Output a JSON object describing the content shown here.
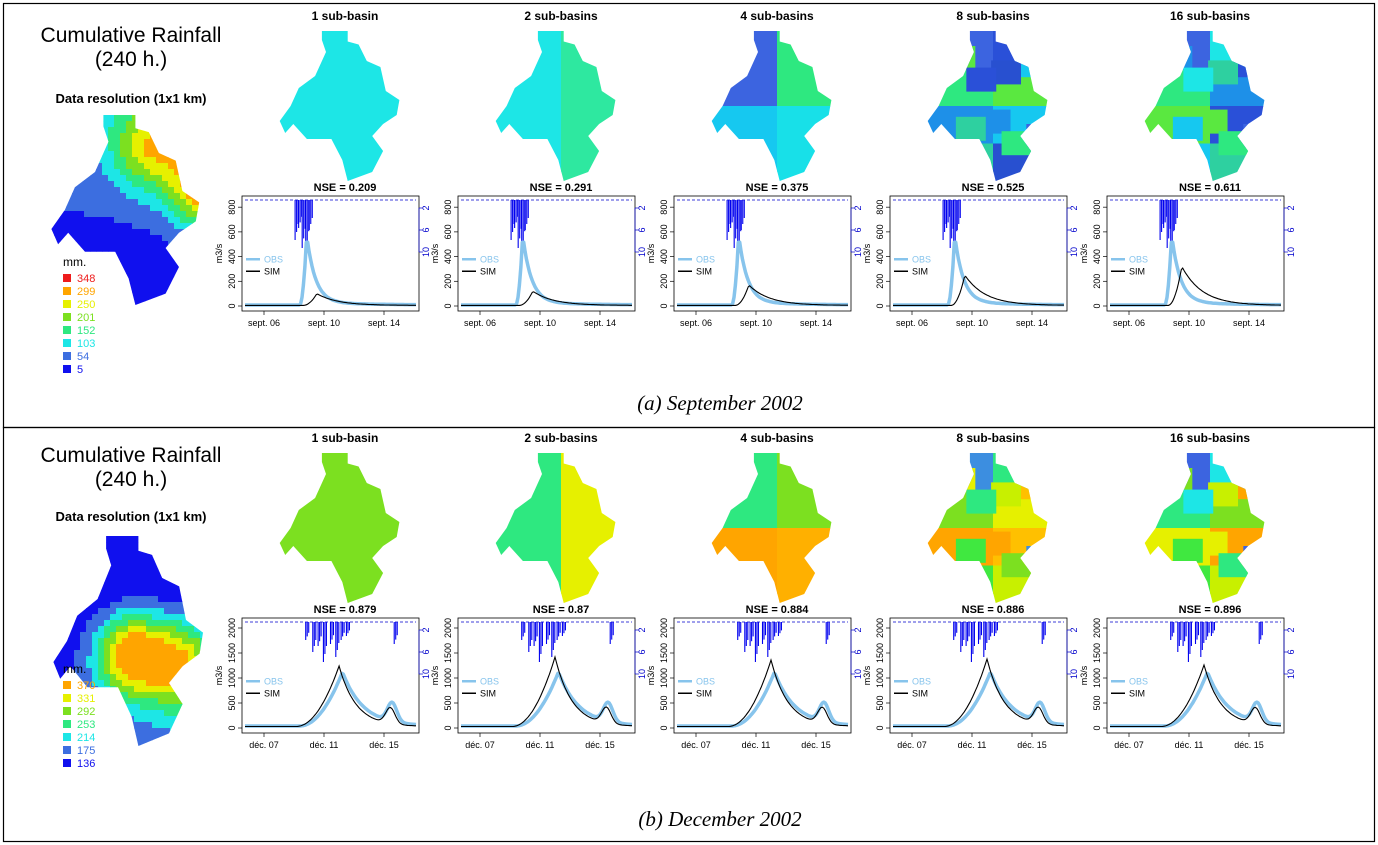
{
  "panels": [
    {
      "caption": "(a) September 2002",
      "left": {
        "title_line1": "Cumulative Rainfall",
        "title_line2": "(240 h.)",
        "resolution": "Data resolution (1x1 km)",
        "legend_unit": "mm.",
        "legend": [
          {
            "label": "348",
            "color": "#ee1c1c"
          },
          {
            "label": "299",
            "color": "#ffa500"
          },
          {
            "label": "250",
            "color": "#e6f000"
          },
          {
            "label": "201",
            "color": "#7ce020"
          },
          {
            "label": "152",
            "color": "#2ee880"
          },
          {
            "label": "103",
            "color": "#1de6e6"
          },
          {
            "label": "54",
            "color": "#3c6ee0"
          },
          {
            "label": "5",
            "color": "#1010ee"
          }
        ]
      },
      "x_ticks": [
        "sept. 06",
        "sept. 10",
        "sept. 14"
      ],
      "y_ticks": [
        "0",
        "200",
        "400",
        "600",
        "800"
      ],
      "y_max": 850,
      "rain_ticks": [
        "2",
        "6",
        "10"
      ],
      "ylabel": "m3/s",
      "legend_labels": {
        "obs": "OBS",
        "sim": "SIM"
      },
      "chart_data": [
        {
          "type": "line",
          "title": "1 sub-basin",
          "nse": "NSE = 0.209",
          "obs_peak": 560,
          "sim_peak": 100,
          "map_colors": [
            "#1de6e6"
          ]
        },
        {
          "type": "line",
          "title": "2 sub-basins",
          "nse": "NSE = 0.291",
          "obs_peak": 560,
          "sim_peak": 120,
          "map_colors": [
            "#1de6e6",
            "#2ee8a0"
          ]
        },
        {
          "type": "line",
          "title": "4 sub-basins",
          "nse": "NSE = 0.375",
          "obs_peak": 560,
          "sim_peak": 170,
          "map_colors": [
            "#3c64e0",
            "#2ee880",
            "#16c8f0",
            "#18e0e8"
          ]
        },
        {
          "type": "line",
          "title": "8 sub-basins",
          "nse": "NSE = 0.525",
          "obs_peak": 560,
          "sim_peak": 250,
          "map_colors": [
            "#3c64e0",
            "#2a50d8",
            "#2ee880",
            "#5ae840",
            "#1e90e8",
            "#16c8f0",
            "#2ed0a0",
            "#2850d0"
          ]
        },
        {
          "type": "line",
          "title": "16 sub-basins",
          "nse": "NSE = 0.611",
          "obs_peak": 560,
          "sim_peak": 320,
          "map_colors": [
            "#3c64e0",
            "#1de6e6",
            "#2ee880",
            "#1e90e8",
            "#5ae840",
            "#2a50d8",
            "#16c8f0",
            "#2ed0a0"
          ]
        }
      ]
    },
    {
      "caption": "(b) December 2002",
      "left": {
        "title_line1": "Cumulative Rainfall",
        "title_line2": "(240 h.)",
        "resolution": "Data resolution (1x1 km)",
        "legend_unit": "mm.",
        "legend": [
          {
            "label": "370",
            "color": "#ffa500"
          },
          {
            "label": "331",
            "color": "#e6f000"
          },
          {
            "label": "292",
            "color": "#7ce020"
          },
          {
            "label": "253",
            "color": "#2ee880"
          },
          {
            "label": "214",
            "color": "#1de6e6"
          },
          {
            "label": "175",
            "color": "#3c6ee0"
          },
          {
            "label": "136",
            "color": "#1010ee"
          }
        ]
      },
      "x_ticks": [
        "déc. 07",
        "déc. 11",
        "déc. 15"
      ],
      "y_ticks": [
        "0",
        "500",
        "1000",
        "1500",
        "2000"
      ],
      "y_max": 2100,
      "rain_ticks": [
        "2",
        "6",
        "10"
      ],
      "ylabel": "m3/s",
      "legend_labels": {
        "obs": "OBS",
        "sim": "SIM"
      },
      "chart_data": [
        {
          "type": "line",
          "title": "1 sub-basin",
          "nse": "NSE = 0.879",
          "obs_peak": 1120,
          "sim_peak": 1240,
          "map_colors": [
            "#7ce020"
          ]
        },
        {
          "type": "line",
          "title": "2 sub-basins",
          "nse": "NSE = 0.87",
          "obs_peak": 1120,
          "sim_peak": 1420,
          "map_colors": [
            "#2ee880",
            "#e6f000"
          ]
        },
        {
          "type": "line",
          "title": "4 sub-basins",
          "nse": "NSE = 0.884",
          "obs_peak": 1120,
          "sim_peak": 1360,
          "map_colors": [
            "#2ee880",
            "#7ce020",
            "#ffa500",
            "#ffb000"
          ]
        },
        {
          "type": "line",
          "title": "8 sub-basins",
          "nse": "NSE = 0.886",
          "obs_peak": 1120,
          "sim_peak": 1380,
          "map_colors": [
            "#3c8ee0",
            "#2ee880",
            "#7ce020",
            "#e6f000",
            "#ffa500",
            "#ffc000",
            "#40e840",
            "#c8f000"
          ]
        },
        {
          "type": "line",
          "title": "16 sub-basins",
          "nse": "NSE = 0.896",
          "obs_peak": 1120,
          "sim_peak": 1260,
          "map_colors": [
            "#3c64e0",
            "#1de6e6",
            "#2ee880",
            "#7ce020",
            "#e6f000",
            "#ffa500",
            "#40e840",
            "#c8f000"
          ]
        }
      ]
    }
  ]
}
